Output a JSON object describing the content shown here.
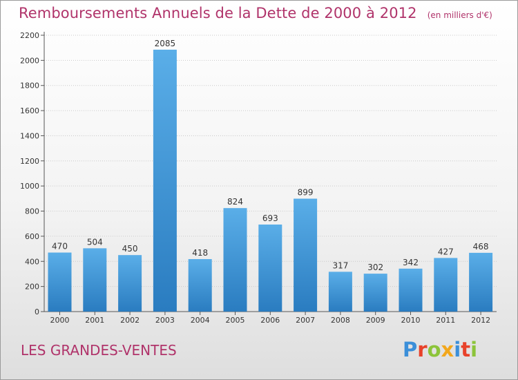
{
  "title": "Remboursements Annuels de la Dette de 2000 à 2012",
  "unit_note": "(en milliers d'€)",
  "place_name": "LES GRANDES-VENTES",
  "logo": {
    "letters": [
      "P",
      "r",
      "o",
      "x",
      "i",
      "t",
      "i"
    ],
    "colors": [
      "#3b8fd9",
      "#e8422a",
      "#8cc43a",
      "#f2a71c",
      "#3b8fd9",
      "#e8422a",
      "#8cc43a"
    ]
  },
  "colors": {
    "bar_top": "#5aaee8",
    "bar_bottom": "#2a7cc0",
    "title": "#b0336a"
  },
  "chart_data": {
    "type": "bar",
    "categories": [
      "2000",
      "2001",
      "2002",
      "2003",
      "2004",
      "2005",
      "2006",
      "2007",
      "2008",
      "2009",
      "2010",
      "2011",
      "2012"
    ],
    "values": [
      470,
      504,
      450,
      2085,
      418,
      824,
      693,
      899,
      317,
      302,
      342,
      427,
      468
    ],
    "data_labels": [
      "470",
      "504",
      "450",
      "2085",
      "418",
      "824",
      "693",
      "899",
      "317",
      "302",
      "342",
      "427",
      "468"
    ],
    "y_ticks": [
      0,
      200,
      400,
      600,
      800,
      1000,
      1200,
      1400,
      1600,
      1800,
      2000,
      2200
    ],
    "ylim": [
      0,
      2200
    ],
    "grid": true,
    "legend": "none"
  }
}
